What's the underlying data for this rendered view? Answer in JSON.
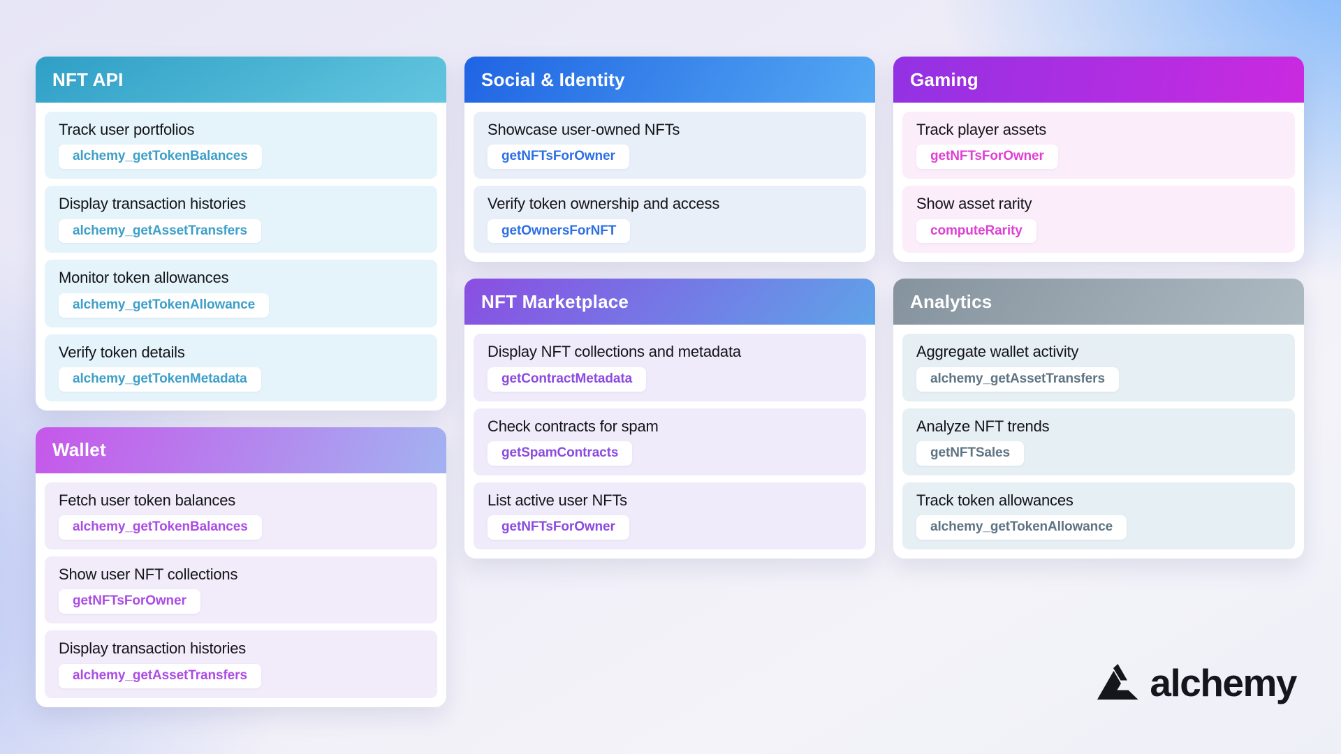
{
  "page": {
    "background": {
      "top_right_blue": "#93C3F8",
      "bottom_left_blue": "#AFC4EF",
      "base_lavender": "#EEECF7"
    },
    "logo": {
      "brand": "alchemy",
      "mark": "alchemy-triangle-logo",
      "color": "#14161B"
    }
  },
  "cards": [
    {
      "id": "nft-api",
      "title": "NFT API",
      "column": 0,
      "header_gradient": {
        "angle": 150,
        "from": "#2F9FC6",
        "to": "#63C6DF"
      },
      "item_bg": "#E5F4FB",
      "badge_color": "#3D9FC9",
      "items": [
        {
          "label": "Track user portfolios",
          "method": "alchemy_getTokenBalances"
        },
        {
          "label": "Display transaction histories",
          "method": "alchemy_getAssetTransfers"
        },
        {
          "label": "Monitor token allowances",
          "method": "alchemy_getTokenAllowance"
        },
        {
          "label": "Verify token details",
          "method": "alchemy_getTokenMetadata"
        }
      ]
    },
    {
      "id": "wallet",
      "title": "Wallet",
      "column": 0,
      "header_gradient": {
        "angle": 110,
        "from": "#C657EA",
        "to": "#A3B2F1"
      },
      "item_bg": "#F1EBFA",
      "badge_color": "#AB4CE5",
      "items": [
        {
          "label": "Fetch user token balances",
          "method": "alchemy_getTokenBalances"
        },
        {
          "label": "Show user NFT collections",
          "method": "getNFTsForOwner"
        },
        {
          "label": "Display transaction histories",
          "method": "alchemy_getAssetTransfers"
        }
      ]
    },
    {
      "id": "social-identity",
      "title": "Social & Identity",
      "column": 1,
      "header_gradient": {
        "angle": 120,
        "from": "#1F64E3",
        "to": "#54A8F3"
      },
      "item_bg": "#E9EFF9",
      "badge_color": "#2E6FE6",
      "items": [
        {
          "label": "Showcase user-owned NFTs",
          "method": "getNFTsForOwner"
        },
        {
          "label": "Verify token ownership and access",
          "method": "getOwnersForNFT"
        }
      ]
    },
    {
      "id": "nft-marketplace",
      "title": "NFT Marketplace",
      "column": 1,
      "header_gradient": {
        "angle": 130,
        "from": "#8A4EE2",
        "to": "#5FA3E8"
      },
      "item_bg": "#EFEBFA",
      "badge_color": "#8B4BE0",
      "items": [
        {
          "label": "Display NFT collections and metadata",
          "method": "getContractMetadata"
        },
        {
          "label": "Check contracts for spam",
          "method": "getSpamContracts"
        },
        {
          "label": "List active user NFTs",
          "method": "getNFTsForOwner"
        }
      ]
    },
    {
      "id": "gaming",
      "title": "Gaming",
      "column": 2,
      "header_gradient": {
        "angle": 100,
        "from": "#9232E3",
        "to": "#CA2AE0"
      },
      "item_bg": "#FBEDFA",
      "badge_color": "#DF3FD3",
      "items": [
        {
          "label": "Track player assets",
          "method": "getNFTsForOwner"
        },
        {
          "label": "Show asset rarity",
          "method": "computeRarity"
        }
      ]
    },
    {
      "id": "analytics",
      "title": "Analytics",
      "column": 2,
      "header_gradient": {
        "angle": 120,
        "from": "#85939E",
        "to": "#AEBAC2"
      },
      "item_bg": "#E6EFF4",
      "badge_color": "#5E7484",
      "items": [
        {
          "label": "Aggregate wallet activity",
          "method": "alchemy_getAssetTransfers"
        },
        {
          "label": "Analyze NFT trends",
          "method": "getNFTSales"
        },
        {
          "label": "Track token allowances",
          "method": "alchemy_getTokenAllowance"
        }
      ]
    }
  ]
}
